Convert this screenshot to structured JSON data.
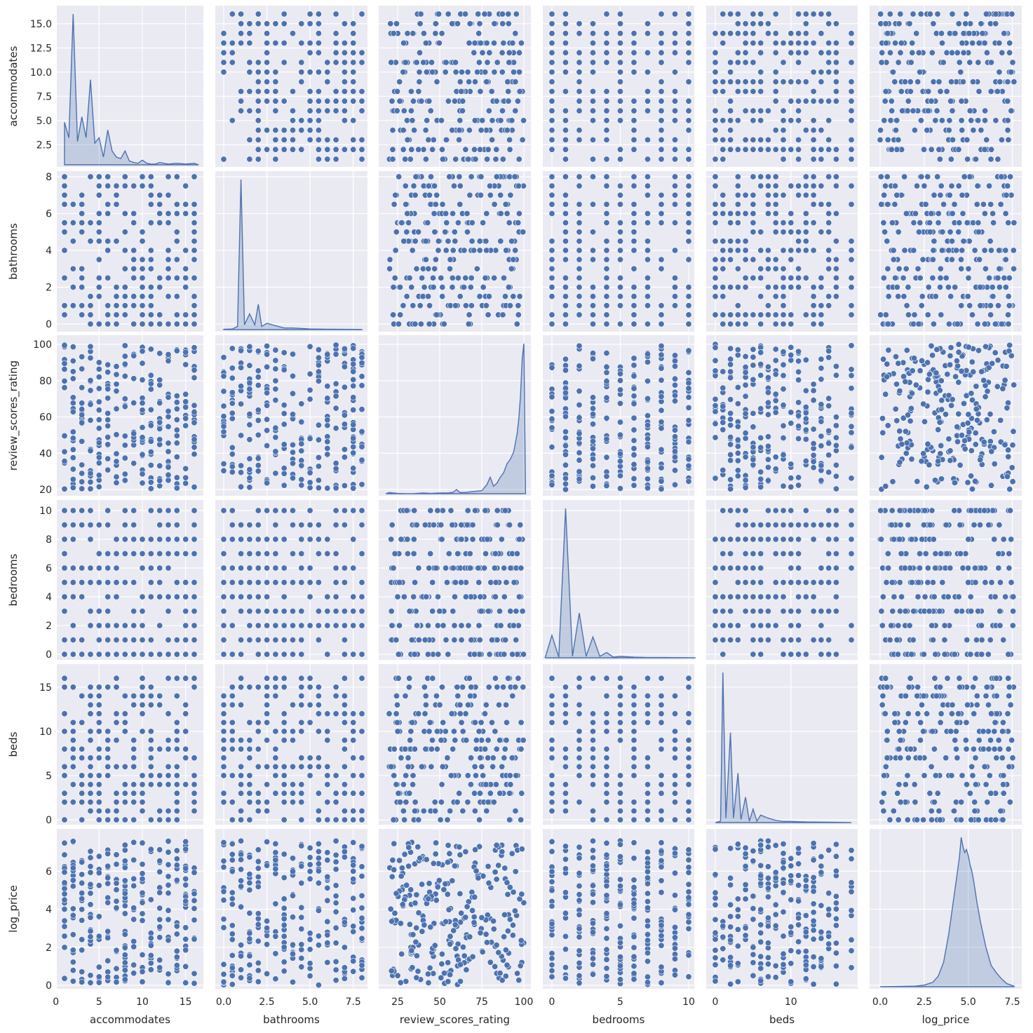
{
  "chart_data": {
    "type": "pairplot",
    "variables": [
      "accommodates",
      "bathrooms",
      "review_scores_rating",
      "bedrooms",
      "beds",
      "log_price"
    ],
    "axes": {
      "accommodates": {
        "lim": [
          1,
          16
        ],
        "ticks": [
          0,
          5,
          10,
          15
        ],
        "y_ticks": [
          "2.5",
          "5.0",
          "7.5",
          "10.0",
          "12.5",
          "15.0"
        ],
        "x_ticks": [
          "0",
          "5",
          "10",
          "15"
        ],
        "values": [
          1,
          2,
          3,
          4,
          5,
          6,
          7,
          8,
          9,
          10,
          11,
          12,
          13,
          14,
          15,
          16
        ],
        "kde_x": [
          1,
          1.5,
          2,
          2.5,
          3,
          3.5,
          4,
          4.5,
          5,
          5.5,
          6,
          6.5,
          7,
          7.5,
          8,
          8.5,
          9,
          9.5,
          10,
          10.5,
          11,
          11.5,
          12,
          13,
          14,
          15,
          16,
          16.5
        ],
        "kde_y": [
          0.055,
          0.035,
          0.195,
          0.03,
          0.062,
          0.035,
          0.11,
          0.028,
          0.035,
          0.01,
          0.045,
          0.018,
          0.01,
          0.008,
          0.018,
          0.005,
          0.003,
          0.002,
          0.006,
          0.002,
          0.001,
          0.001,
          0.003,
          0.001,
          0.002,
          0.001,
          0.002,
          0.0
        ]
      },
      "bathrooms": {
        "lim": [
          0,
          8
        ],
        "y_ticks": [
          "0",
          "2",
          "4",
          "6",
          "8"
        ],
        "x_ticks": [
          "0.0",
          "2.5",
          "5.0",
          "7.5"
        ],
        "values": [
          0,
          0.5,
          1,
          1.5,
          2,
          2.5,
          3,
          3.5,
          4,
          4.5,
          5,
          5.5,
          6,
          6.5,
          7,
          7.5,
          8
        ],
        "kde_x": [
          0,
          0.5,
          0.8,
          1,
          1.2,
          1.5,
          1.8,
          2,
          2.2,
          2.5,
          3,
          3.5,
          4,
          5,
          6,
          8
        ],
        "kde_y": [
          0.002,
          0.004,
          0.02,
          0.95,
          0.03,
          0.1,
          0.03,
          0.16,
          0.02,
          0.04,
          0.025,
          0.01,
          0.01,
          0.004,
          0.002,
          0.001
        ]
      },
      "review_scores_rating": {
        "lim": [
          20,
          100
        ],
        "y_ticks": [
          "20",
          "40",
          "60",
          "80",
          "100"
        ],
        "x_ticks": [
          "25",
          "50",
          "75",
          "100"
        ],
        "kde_x": [
          18,
          20,
          25,
          30,
          35,
          40,
          45,
          50,
          55,
          58,
          60,
          62,
          65,
          70,
          75,
          78,
          80,
          82,
          84,
          86,
          88,
          90,
          92,
          94,
          96,
          97,
          98,
          99,
          100,
          101
        ],
        "kde_y": [
          0.0,
          0.008,
          0.002,
          0.0,
          0.001,
          0.005,
          0.002,
          0.005,
          0.005,
          0.01,
          0.028,
          0.008,
          0.008,
          0.015,
          0.02,
          0.06,
          0.11,
          0.05,
          0.07,
          0.11,
          0.14,
          0.2,
          0.23,
          0.28,
          0.4,
          0.5,
          0.65,
          0.9,
          1.0,
          0.0
        ]
      },
      "bedrooms": {
        "lim": [
          0,
          10
        ],
        "y_ticks": [
          "0",
          "2",
          "4",
          "6",
          "8",
          "10"
        ],
        "x_ticks": [
          "0",
          "5",
          "10"
        ],
        "values": [
          0,
          1,
          2,
          3,
          4,
          5,
          6,
          7,
          8,
          9,
          10
        ],
        "kde_x": [
          -0.5,
          0,
          0.5,
          1,
          1.5,
          2,
          2.5,
          3,
          3.5,
          4,
          4.5,
          5,
          6,
          7,
          8,
          10.5
        ],
        "kde_y": [
          0.0,
          0.15,
          0.005,
          1.0,
          0.01,
          0.3,
          0.01,
          0.14,
          0.01,
          0.035,
          0.004,
          0.01,
          0.004,
          0.002,
          0.002,
          0.0
        ]
      },
      "beds": {
        "lim": [
          0,
          18
        ],
        "y_ticks": [
          "0",
          "5",
          "10",
          "15"
        ],
        "x_ticks": [
          "0",
          "10"
        ],
        "values": [
          0,
          1,
          2,
          3,
          4,
          5,
          6,
          7,
          8,
          9,
          10,
          11,
          12,
          13,
          14,
          15,
          16,
          18
        ],
        "kde_x": [
          0,
          0.7,
          1,
          1.4,
          2,
          2.4,
          3,
          3.4,
          4,
          4.5,
          5,
          5.5,
          6,
          7,
          8,
          9,
          10,
          12,
          16,
          18
        ],
        "kde_y": [
          0.0,
          0.01,
          1.0,
          0.03,
          0.6,
          0.03,
          0.33,
          0.02,
          0.17,
          0.01,
          0.09,
          0.01,
          0.05,
          0.03,
          0.015,
          0.008,
          0.008,
          0.004,
          0.002,
          0.0
        ]
      },
      "log_price": {
        "lim": [
          0,
          7.6
        ],
        "y_ticks": [
          "0",
          "2",
          "4",
          "6"
        ],
        "x_ticks": [
          "0.0",
          "2.5",
          "5.0",
          "7.5"
        ],
        "kde_x": [
          0,
          1,
          2,
          2.5,
          3,
          3.3,
          3.6,
          3.9,
          4.2,
          4.5,
          4.6,
          4.7,
          4.8,
          4.9,
          5.0,
          5.1,
          5.2,
          5.3,
          5.5,
          5.7,
          6.0,
          6.3,
          6.6,
          6.9,
          7.2,
          7.6
        ],
        "kde_y": [
          0.0,
          0.002,
          0.004,
          0.01,
          0.03,
          0.07,
          0.16,
          0.35,
          0.6,
          0.85,
          0.98,
          0.92,
          0.88,
          0.9,
          0.86,
          0.8,
          0.76,
          0.7,
          0.55,
          0.42,
          0.26,
          0.14,
          0.09,
          0.05,
          0.02,
          0.004
        ]
      }
    },
    "grid": true,
    "diagonal": "kde",
    "off_diagonal": "scatter",
    "colors": {
      "point": "#4c72b0",
      "point_edge": "#ffffff",
      "panel_bg": "#eaeaf2",
      "grid": "#ffffff",
      "kde_fill": "#4c72b0"
    }
  }
}
